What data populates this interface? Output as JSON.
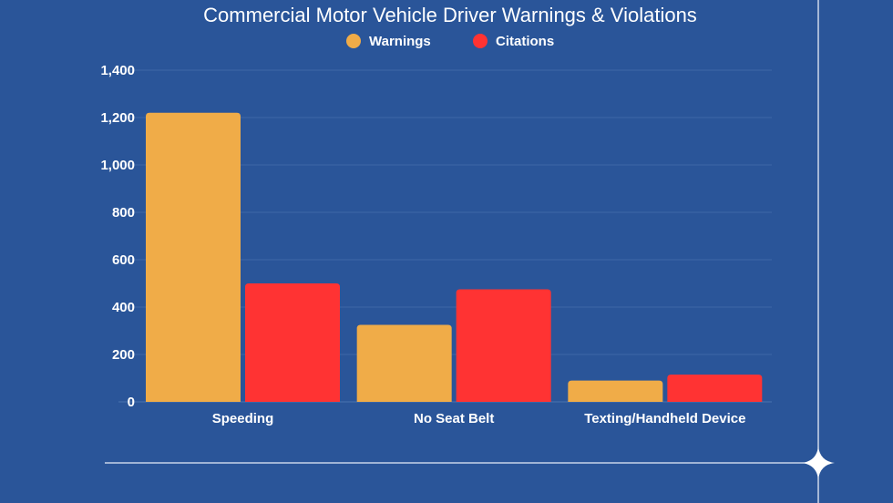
{
  "chart_data": {
    "type": "bar",
    "title": "Commercial Motor Vehicle Driver Warnings & Violations",
    "categories": [
      "Speeding",
      "No Seat Belt",
      "Texting/Handheld Device"
    ],
    "series": [
      {
        "name": "Warnings",
        "color": "#f0ac48",
        "values": [
          1220,
          325,
          90
        ]
      },
      {
        "name": "Citations",
        "color": "#ff3333",
        "values": [
          500,
          475,
          115
        ]
      }
    ],
    "yticks": [
      0,
      200,
      400,
      600,
      800,
      1000,
      1200,
      1400
    ],
    "ytick_labels": [
      "0",
      "200",
      "400",
      "600",
      "800",
      "1,000",
      "1,200",
      "1,400"
    ],
    "ylim": [
      0,
      1400
    ],
    "xlabel": "",
    "ylabel": "",
    "grid": true,
    "legend": "top-center"
  }
}
